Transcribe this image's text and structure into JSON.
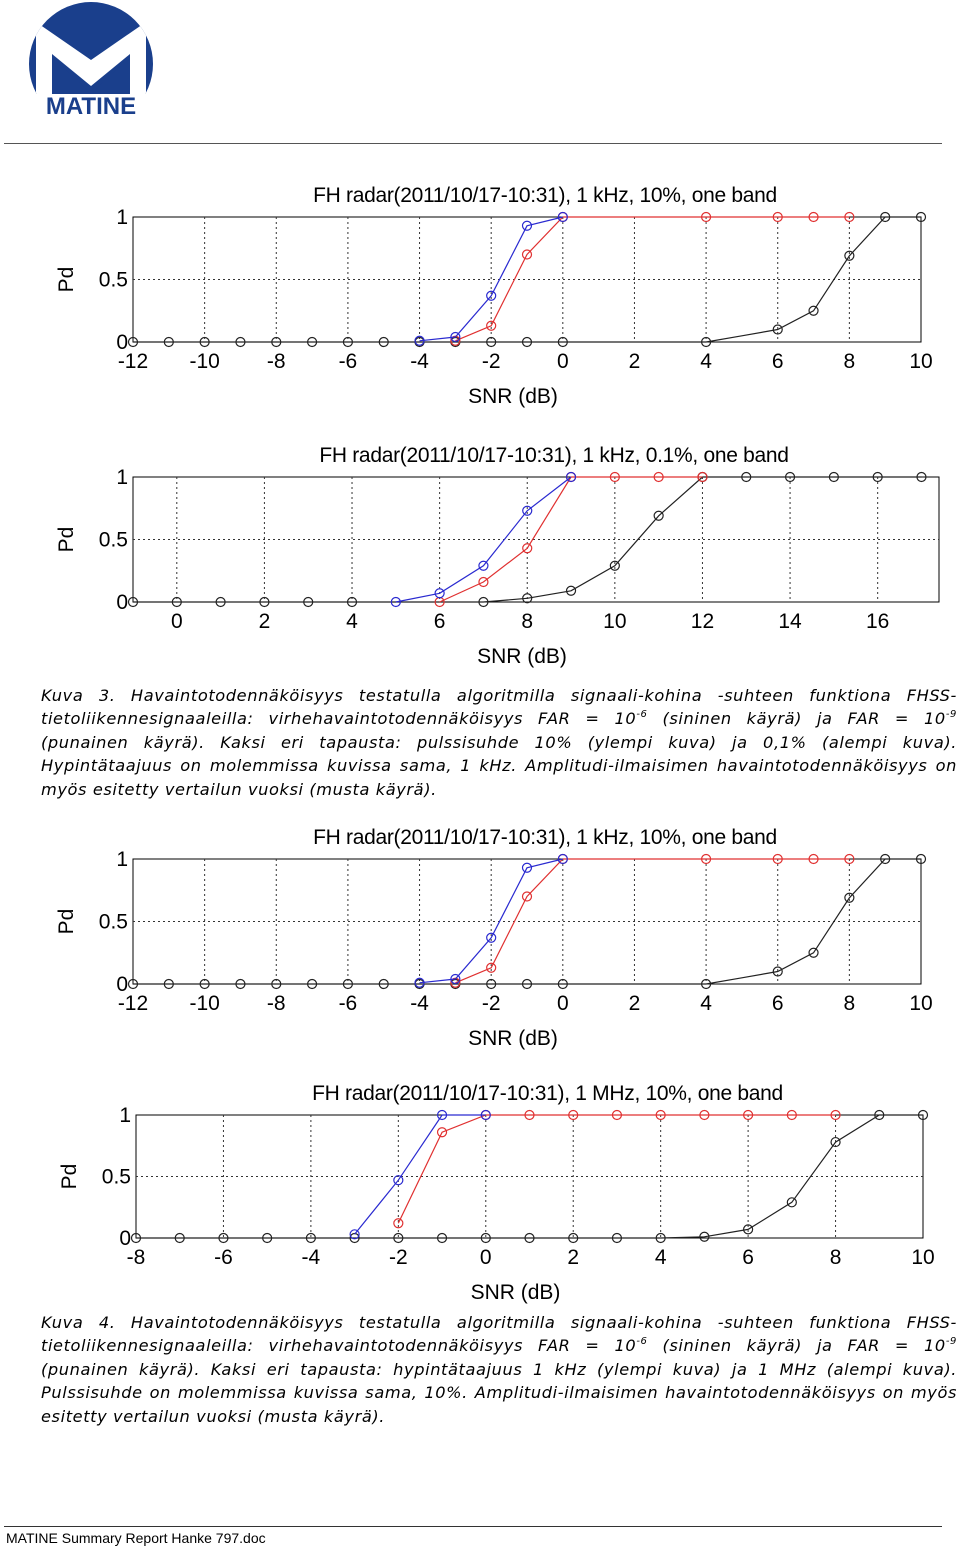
{
  "logo": {
    "text": "MATINE",
    "colors": {
      "ring": "#1a3f8c",
      "letter": "#ffffff"
    }
  },
  "colors": {
    "blue": "#2a2ad0",
    "red": "#e03030",
    "black": "#222222",
    "grid": "#333333"
  },
  "chart_data": [
    {
      "type": "line",
      "title": "FH radar(2011/10/17-10:31), 1 kHz, 10%, one band",
      "xlabel": "SNR (dB)",
      "ylabel": "Pd",
      "xlim": [
        -12,
        10
      ],
      "ylim": [
        0,
        1
      ],
      "xticks": [
        -12,
        -10,
        -8,
        -6,
        -4,
        -2,
        0,
        2,
        4,
        6,
        8,
        10
      ],
      "yticks": [
        0,
        0.5,
        1
      ],
      "ytick_labels": [
        "0",
        "0.5",
        "1"
      ],
      "grid": true,
      "series": [
        {
          "color": "blue",
          "x": [
            -4,
            -3,
            -2,
            -1,
            0
          ],
          "y": [
            0.01,
            0.04,
            0.37,
            0.93,
            1.0
          ]
        },
        {
          "color": "red",
          "x": [
            -3,
            -2,
            -1,
            0,
            4,
            6,
            7,
            8
          ],
          "y": [
            0.01,
            0.13,
            0.7,
            1.0,
            1.0,
            1.0,
            1.0,
            1.0
          ]
        },
        {
          "color": "black",
          "x": [
            -12,
            -11,
            -10,
            -9,
            -8,
            -7,
            -6,
            -5,
            -4,
            -3,
            -2,
            -1,
            0,
            1,
            2,
            3,
            4,
            5,
            6,
            7,
            8,
            9,
            10
          ],
          "y": [
            0,
            0,
            0,
            0,
            0,
            0,
            0,
            0,
            0,
            0,
            0,
            0,
            0,
            0,
            0,
            0,
            0,
            0.05,
            0.1,
            0.25,
            0.69,
            1.0,
            1.0
          ],
          "markers": [
            -12,
            -11,
            -10,
            -9,
            -8,
            -7,
            -6,
            -5,
            -4,
            -3,
            -2,
            -1,
            0,
            4,
            6,
            7,
            8,
            9,
            10
          ]
        }
      ]
    },
    {
      "type": "line",
      "title": "FH radar(2011/10/17-10:31), 1 kHz, 0.1%, one band",
      "xlabel": "SNR (dB)",
      "ylabel": "Pd",
      "xlim": [
        -1,
        17.4
      ],
      "ylim": [
        0,
        1
      ],
      "xticks": [
        0,
        2,
        4,
        6,
        8,
        10,
        12,
        14,
        16
      ],
      "yticks": [
        0,
        0.5,
        1
      ],
      "ytick_labels": [
        "0",
        "0.5",
        "1"
      ],
      "grid": true,
      "series": [
        {
          "color": "blue",
          "x": [
            5,
            6,
            7,
            8,
            9
          ],
          "y": [
            0,
            0.07,
            0.29,
            0.73,
            1.0
          ]
        },
        {
          "color": "red",
          "x": [
            6,
            7,
            8,
            9,
            10,
            11,
            12
          ],
          "y": [
            0,
            0.16,
            0.43,
            1.0,
            1.0,
            1.0,
            1.0
          ]
        },
        {
          "color": "black",
          "x": [
            -1,
            0,
            1,
            2,
            3,
            4,
            5,
            6,
            7,
            8,
            9,
            10,
            11,
            12,
            13,
            14,
            15,
            16,
            17
          ],
          "y": [
            0,
            0,
            0,
            0,
            0,
            0,
            0,
            0,
            0,
            0.03,
            0.09,
            0.29,
            0.69,
            1.0,
            1.0,
            1.0,
            1.0,
            1.0,
            1.0
          ],
          "markers": [
            -1,
            0,
            1,
            2,
            3,
            4,
            7,
            8,
            9,
            10,
            11,
            12,
            13,
            14,
            15,
            16,
            17
          ]
        }
      ]
    },
    {
      "type": "line",
      "title": "FH radar(2011/10/17-10:31), 1 kHz, 10%, one band",
      "xlabel": "SNR (dB)",
      "ylabel": "Pd",
      "xlim": [
        -12,
        10
      ],
      "ylim": [
        0,
        1
      ],
      "xticks": [
        -12,
        -10,
        -8,
        -6,
        -4,
        -2,
        0,
        2,
        4,
        6,
        8,
        10
      ],
      "yticks": [
        0,
        0.5,
        1
      ],
      "ytick_labels": [
        "0",
        "0.5",
        "1"
      ],
      "grid": true,
      "series": [
        {
          "color": "blue",
          "x": [
            -4,
            -3,
            -2,
            -1,
            0
          ],
          "y": [
            0.01,
            0.04,
            0.37,
            0.93,
            1.0
          ]
        },
        {
          "color": "red",
          "x": [
            -3,
            -2,
            -1,
            0,
            4,
            6,
            7,
            8
          ],
          "y": [
            0.01,
            0.13,
            0.7,
            1.0,
            1.0,
            1.0,
            1.0,
            1.0
          ]
        },
        {
          "color": "black",
          "x": [
            -12,
            -11,
            -10,
            -9,
            -8,
            -7,
            -6,
            -5,
            -4,
            -3,
            -2,
            -1,
            0,
            1,
            2,
            3,
            4,
            5,
            6,
            7,
            8,
            9,
            10
          ],
          "y": [
            0,
            0,
            0,
            0,
            0,
            0,
            0,
            0,
            0,
            0,
            0,
            0,
            0,
            0,
            0,
            0,
            0,
            0.05,
            0.1,
            0.25,
            0.69,
            1.0,
            1.0
          ],
          "markers": [
            -12,
            -11,
            -10,
            -9,
            -8,
            -7,
            -6,
            -5,
            -4,
            -3,
            -2,
            -1,
            0,
            4,
            6,
            7,
            8,
            9,
            10
          ]
        }
      ]
    },
    {
      "type": "line",
      "title": "FH radar(2011/10/17-10:31), 1 MHz, 10%, one band",
      "xlabel": "SNR (dB)",
      "ylabel": "Pd",
      "xlim": [
        -8,
        10
      ],
      "ylim": [
        0,
        1
      ],
      "xticks": [
        -8,
        -6,
        -4,
        -2,
        0,
        2,
        4,
        6,
        8,
        10
      ],
      "yticks": [
        0,
        0.5,
        1
      ],
      "ytick_labels": [
        "0",
        "0.5",
        "1"
      ],
      "grid": true,
      "series": [
        {
          "color": "blue",
          "x": [
            -3,
            -2,
            -1,
            0
          ],
          "y": [
            0.03,
            0.47,
            1.0,
            1.0
          ]
        },
        {
          "color": "red",
          "x": [
            -2,
            -1,
            0,
            1,
            2,
            3,
            4,
            5,
            6,
            7,
            8
          ],
          "y": [
            0.12,
            0.86,
            1.0,
            1.0,
            1.0,
            1.0,
            1.0,
            1.0,
            1.0,
            1.0,
            1.0
          ]
        },
        {
          "color": "black",
          "x": [
            -8,
            -7,
            -6,
            -5,
            -4,
            -3,
            -2,
            -1,
            0,
            1,
            2,
            3,
            4,
            5,
            6,
            7,
            8,
            9,
            10
          ],
          "y": [
            0,
            0,
            0,
            0,
            0,
            0,
            0,
            0,
            0,
            0,
            0,
            0,
            0,
            0.01,
            0.07,
            0.29,
            0.78,
            1.0,
            1.0
          ],
          "markers": [
            -8,
            -7,
            -6,
            -5,
            -4,
            -3,
            -2,
            -1,
            0,
            1,
            2,
            3,
            4,
            5,
            6,
            7,
            8,
            9,
            10
          ]
        }
      ]
    }
  ],
  "caption1": {
    "p1": "Kuva 3. Havaintotodennäköisyys testatulla algoritmilla signaali-kohina -suhteen funktiona FHSS-tietoliikennesignaaleilla: virhehavaintotodennäköisyys FAR = 10",
    "e1": "-6",
    "p2": " (sininen käyrä) ja FAR = 10",
    "e2": "-9",
    "p3": " (punainen käyrä). Kaksi eri tapausta: pulssisuhde 10% (ylempi kuva) ja 0,1% (alempi kuva). Hypintätaajuus on molemmissa kuvissa sama, 1 kHz. Amplitudi-ilmaisimen havaintotodennäköisyys on myös esitetty vertailun vuoksi (musta käyrä)."
  },
  "caption2": {
    "p1": "Kuva 4. Havaintotodennäköisyys testatulla algoritmilla signaali-kohina -suhteen funktiona FHSS-tietoliikennesignaaleilla: virhehavaintotodennäköisyys FAR = 10",
    "e1": "-6",
    "p2": " (sininen käyrä) ja FAR = 10",
    "e2": "-9",
    "p3": " (punainen käyrä). Kaksi eri tapausta: hypintätaajuus 1 kHz (ylempi kuva) ja 1 MHz (alempi kuva). Pulssisuhde on molemmissa kuvissa sama, 10%. Amplitudi-ilmaisimen havaintotodennäköisyys on myös esitetty vertailun vuoksi (musta käyrä)."
  },
  "footer": {
    "text": "MATINE Summary Report Hanke 797.doc"
  }
}
